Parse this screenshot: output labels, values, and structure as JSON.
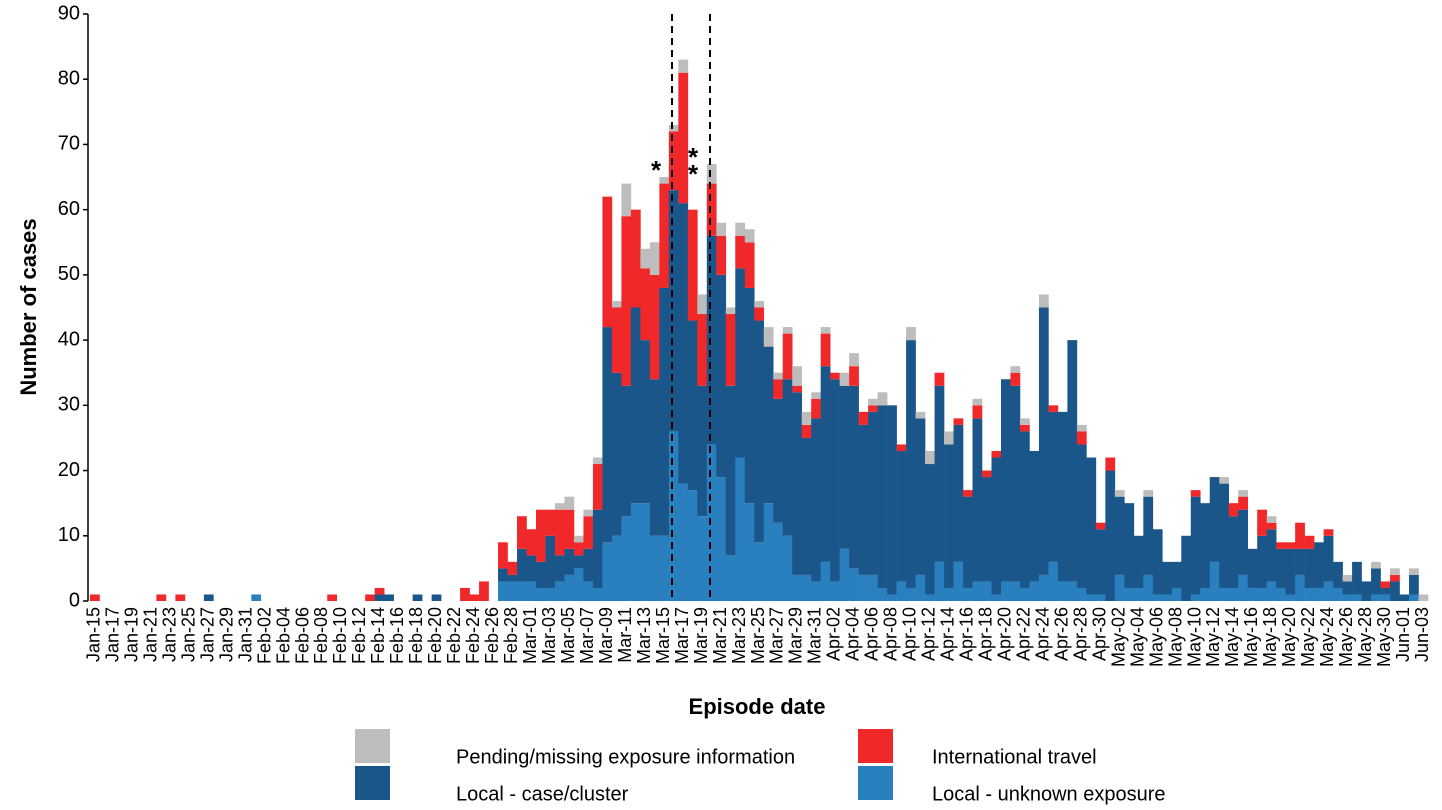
{
  "chart_data": {
    "type": "stacked-bar",
    "x_label": "Episode date",
    "y_label": "Number of cases",
    "categories": [
      "Jan-15",
      null,
      "Jan-17",
      null,
      "Jan-19",
      null,
      "Jan-21",
      null,
      "Jan-23",
      null,
      "Jan-25",
      null,
      "Jan-27",
      null,
      "Jan-29",
      null,
      "Jan-31",
      null,
      "Feb-02",
      null,
      "Feb-04",
      null,
      "Feb-06",
      null,
      "Feb-08",
      null,
      "Feb-10",
      null,
      "Feb-12",
      null,
      "Feb-14",
      null,
      "Feb-16",
      null,
      "Feb-18",
      null,
      "Feb-20",
      null,
      "Feb-22",
      null,
      "Feb-24",
      null,
      "Feb-26",
      null,
      "Feb-28",
      null,
      "Mar-01",
      null,
      "Mar-03",
      null,
      "Mar-05",
      null,
      "Mar-07",
      null,
      "Mar-09",
      null,
      "Mar-11",
      null,
      "Mar-13",
      null,
      "Mar-15",
      null,
      "Mar-17",
      null,
      "Mar-19",
      null,
      "Mar-21",
      null,
      "Mar-23",
      null,
      "Mar-25",
      null,
      "Mar-27",
      null,
      "Mar-29",
      null,
      "Mar-31",
      null,
      "Apr-02",
      null,
      "Apr-04",
      null,
      "Apr-06",
      null,
      "Apr-08",
      null,
      "Apr-10",
      null,
      "Apr-12",
      null,
      "Apr-14",
      null,
      "Apr-16",
      null,
      "Apr-18",
      null,
      "Apr-20",
      null,
      "Apr-22",
      null,
      "Apr-24",
      null,
      "Apr-26",
      null,
      "Apr-28",
      null,
      "Apr-30",
      null,
      "May-02",
      null,
      "May-04",
      null,
      "May-06",
      null,
      "May-08",
      null,
      "May-10",
      null,
      "May-12",
      null,
      "May-14",
      null,
      "May-16",
      null,
      "May-18",
      null,
      "May-20",
      null,
      "May-22",
      null,
      "May-24",
      null,
      "May-26",
      null,
      "May-28",
      null,
      "May-30",
      null,
      "Jun-01",
      null,
      "Jun-03"
    ],
    "series": [
      {
        "name": "Local - unknown exposure",
        "color": "#2a7fbf",
        "values": [
          0,
          0,
          0,
          0,
          0,
          0,
          0,
          0,
          0,
          0,
          0,
          0,
          0,
          0,
          0,
          0,
          0,
          1,
          0,
          0,
          0,
          0,
          0,
          0,
          0,
          0,
          0,
          0,
          0,
          0,
          0,
          0,
          0,
          0,
          0,
          0,
          0,
          0,
          0,
          0,
          0,
          0,
          0,
          3,
          3,
          3,
          3,
          2,
          2,
          3,
          4,
          5,
          3,
          2,
          9,
          10,
          13,
          15,
          15,
          10,
          10,
          26,
          18,
          17,
          13,
          24,
          19,
          7,
          22,
          15,
          9,
          15,
          12,
          10,
          4,
          4,
          3,
          6,
          3,
          8,
          5,
          4,
          4,
          2,
          1,
          3,
          2,
          4,
          1,
          6,
          2,
          6,
          2,
          3,
          3,
          1,
          3,
          3,
          2,
          3,
          4,
          6,
          3,
          3,
          2,
          1,
          1,
          0,
          4,
          2,
          2,
          4,
          1,
          1,
          2,
          0,
          1,
          2,
          6,
          2,
          2,
          4,
          2,
          2,
          3,
          2,
          1,
          4,
          2,
          2,
          3,
          2,
          1,
          1,
          0,
          1,
          1,
          0,
          0,
          1,
          0
        ]
      },
      {
        "name": "Local - case/cluster",
        "color": "#1a5689",
        "values": [
          0,
          0,
          0,
          0,
          0,
          0,
          0,
          0,
          0,
          0,
          0,
          0,
          1,
          0,
          0,
          0,
          0,
          0,
          0,
          0,
          0,
          0,
          0,
          0,
          0,
          0,
          0,
          0,
          0,
          0,
          1,
          1,
          0,
          0,
          1,
          0,
          1,
          0,
          0,
          0,
          0,
          0,
          0,
          2,
          1,
          5,
          4,
          4,
          8,
          4,
          4,
          2,
          5,
          12,
          33,
          25,
          20,
          30,
          25,
          24,
          38,
          37,
          43,
          26,
          20,
          32,
          31,
          26,
          29,
          33,
          34,
          24,
          19,
          24,
          28,
          21,
          25,
          30,
          31,
          25,
          28,
          23,
          25,
          28,
          29,
          20,
          38,
          24,
          20,
          27,
          22,
          21,
          14,
          25,
          16,
          21,
          31,
          30,
          24,
          20,
          41,
          23,
          26,
          37,
          22,
          21,
          10,
          20,
          12,
          13,
          8,
          12,
          10,
          5,
          4,
          10,
          15,
          13,
          13,
          16,
          11,
          10,
          6,
          8,
          8,
          6,
          7,
          4,
          6,
          7,
          7,
          4,
          2,
          5,
          3,
          4,
          1,
          3,
          1,
          3,
          0
        ]
      },
      {
        "name": "International travel",
        "color": "#f0282a",
        "values": [
          1,
          0,
          0,
          0,
          0,
          0,
          0,
          1,
          0,
          1,
          0,
          0,
          0,
          0,
          0,
          0,
          0,
          0,
          0,
          0,
          0,
          0,
          0,
          0,
          0,
          1,
          0,
          0,
          0,
          1,
          1,
          0,
          0,
          0,
          0,
          0,
          0,
          0,
          0,
          2,
          1,
          3,
          0,
          4,
          2,
          5,
          4,
          8,
          4,
          7,
          6,
          2,
          5,
          7,
          20,
          10,
          26,
          15,
          11,
          16,
          16,
          9,
          20,
          17,
          11,
          8,
          6,
          11,
          5,
          7,
          2,
          0,
          3,
          7,
          1,
          2,
          3,
          5,
          1,
          0,
          3,
          2,
          1,
          0,
          0,
          1,
          0,
          0,
          0,
          2,
          0,
          1,
          1,
          2,
          1,
          1,
          0,
          2,
          1,
          0,
          0,
          1,
          0,
          0,
          2,
          0,
          1,
          2,
          0,
          0,
          0,
          0,
          0,
          0,
          0,
          0,
          1,
          0,
          0,
          0,
          2,
          2,
          0,
          4,
          1,
          1,
          1,
          4,
          2,
          0,
          1,
          0,
          0,
          0,
          0,
          0,
          1,
          1,
          0,
          0,
          0
        ]
      },
      {
        "name": "Pending/missing exposure information",
        "color": "#bdbdbd",
        "values": [
          0,
          0,
          0,
          0,
          0,
          0,
          0,
          0,
          0,
          0,
          0,
          0,
          0,
          0,
          0,
          0,
          0,
          0,
          0,
          0,
          0,
          0,
          0,
          0,
          0,
          0,
          0,
          0,
          0,
          0,
          0,
          0,
          0,
          0,
          0,
          0,
          0,
          0,
          0,
          0,
          0,
          0,
          0,
          0,
          0,
          0,
          0,
          0,
          0,
          1,
          2,
          1,
          1,
          1,
          0,
          1,
          5,
          0,
          3,
          5,
          1,
          1,
          2,
          0,
          3,
          3,
          2,
          1,
          2,
          2,
          1,
          3,
          1,
          1,
          3,
          2,
          1,
          1,
          0,
          2,
          2,
          0,
          1,
          2,
          0,
          0,
          2,
          1,
          2,
          0,
          2,
          0,
          0,
          1,
          0,
          0,
          0,
          1,
          1,
          0,
          2,
          0,
          0,
          0,
          1,
          0,
          0,
          0,
          1,
          0,
          0,
          1,
          0,
          0,
          0,
          0,
          0,
          0,
          0,
          1,
          0,
          1,
          0,
          0,
          1,
          0,
          0,
          0,
          0,
          0,
          0,
          0,
          1,
          0,
          0,
          1,
          0,
          1,
          0,
          1,
          1
        ]
      }
    ],
    "ylim": [
      0,
      90
    ],
    "yticks": [
      0,
      10,
      20,
      30,
      40,
      50,
      60,
      70,
      80,
      90
    ],
    "annotations": [
      "*",
      "*",
      "*"
    ]
  }
}
